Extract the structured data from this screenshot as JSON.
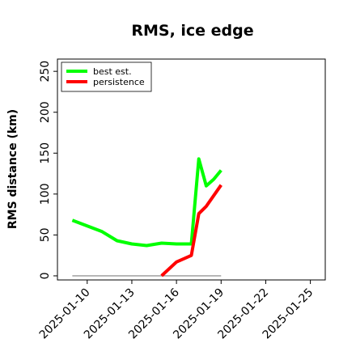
{
  "chart_data": {
    "type": "line",
    "title": "RMS, ice edge",
    "xlabel": "",
    "ylabel": "RMS distance (km)",
    "xlim": [
      "2025-01-08",
      "2025-01-26"
    ],
    "ylim": [
      -5,
      265
    ],
    "y_ticks": [
      0,
      50,
      100,
      150,
      200,
      250
    ],
    "x_ticks": [
      "2025-01-10",
      "2025-01-13",
      "2025-01-16",
      "2025-01-19",
      "2025-01-22",
      "2025-01-25"
    ],
    "legend_position": "top-left",
    "grid": false,
    "zero_line": {
      "color": "#808080",
      "y": 0,
      "x_range": [
        "2025-01-09",
        "2025-01-19"
      ]
    },
    "series": [
      {
        "name": "best est.",
        "color": "#00ff00",
        "x": [
          "2025-01-09",
          "2025-01-10",
          "2025-01-11",
          "2025-01-12",
          "2025-01-13",
          "2025-01-14",
          "2025-01-15",
          "2025-01-16",
          "2025-01-17",
          "2025-01-17.5",
          "2025-01-18",
          "2025-01-18.5",
          "2025-01-19"
        ],
        "values": [
          68,
          61,
          54,
          43,
          39,
          37,
          40,
          39,
          39,
          143,
          110,
          118,
          129
        ]
      },
      {
        "name": "persistence",
        "color": "#ff0000",
        "x": [
          "2025-01-15",
          "2025-01-16",
          "2025-01-17",
          "2025-01-17.5",
          "2025-01-18",
          "2025-01-19"
        ],
        "values": [
          0,
          17,
          25,
          76,
          85,
          111
        ]
      }
    ]
  }
}
